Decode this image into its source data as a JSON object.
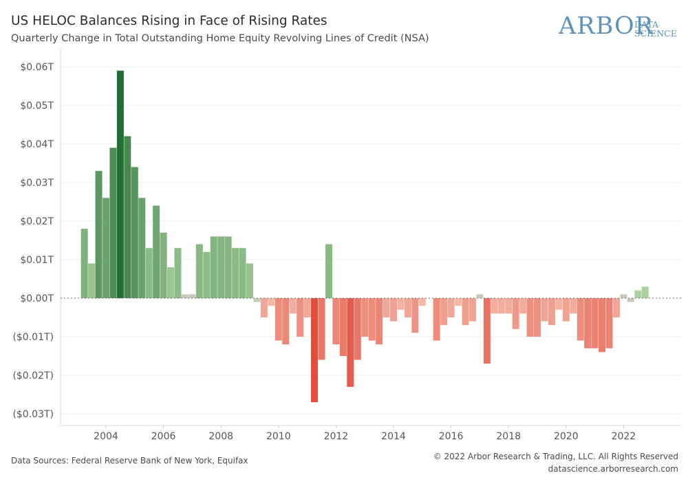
{
  "header": {
    "title": "US HELOC Balances Rising in Face of Rising Rates",
    "subtitle": "Quarterly Change in Total Outstanding Home Equity Revolving Lines of Credit (NSA)"
  },
  "logo": {
    "word": "ARBOR",
    "line1": "DATA",
    "line2": "SCIENCE",
    "color": "#5f93b8"
  },
  "footer": {
    "sources": "Data Sources: Federal Reserve Bank of New York, Equifax",
    "copyright": "© 2022 Arbor Research & Trading, LLC. All Rights Reserved",
    "website": "datascience.arborresearch.com"
  },
  "chart_data": {
    "type": "bar",
    "title": "US HELOC Balances Rising in Face of Rising Rates",
    "subtitle": "Quarterly Change in Total Outstanding Home Equity Revolving Lines of Credit (NSA)",
    "xlabel": "",
    "ylabel": "",
    "ylim": [
      -0.03,
      0.06
    ],
    "xlim": [
      2002.0,
      2024.0
    ],
    "yticks": [
      0.06,
      0.05,
      0.04,
      0.03,
      0.02,
      0.01,
      0.0,
      -0.01,
      -0.02,
      -0.03
    ],
    "ytick_labels": [
      "$0.06T",
      "$0.05T",
      "$0.04T",
      "$0.03T",
      "$0.02T",
      "$0.01T",
      "$0.00T",
      "($0.01T)",
      "($0.02T)",
      "($0.03T)"
    ],
    "xticks": [
      2004,
      2006,
      2008,
      2010,
      2012,
      2014,
      2016,
      2018,
      2020,
      2022
    ],
    "xtick_labels": [
      "2004",
      "2006",
      "2008",
      "2010",
      "2012",
      "2014",
      "2016",
      "2018",
      "2020",
      "2022"
    ],
    "grid": true,
    "zero_line": "dotted",
    "start": 2003.25,
    "step": 0.25,
    "colors": {
      "positive_light": "#b9dba9",
      "positive_dark": "#236e35",
      "negative_light": "#f6c7b9",
      "negative_dark": "#e34d3b",
      "neutral": "#c9c9b9"
    },
    "values": [
      0.018,
      0.009,
      0.033,
      0.026,
      0.039,
      0.059,
      0.042,
      0.034,
      0.026,
      0.013,
      0.024,
      0.017,
      0.008,
      0.013,
      0.001,
      0.001,
      0.014,
      0.012,
      0.016,
      0.016,
      0.016,
      0.013,
      0.013,
      0.009,
      -0.001,
      -0.005,
      -0.002,
      -0.011,
      -0.012,
      -0.004,
      -0.01,
      -0.005,
      -0.027,
      -0.016,
      0.014,
      -0.012,
      -0.015,
      -0.023,
      -0.016,
      -0.01,
      -0.011,
      -0.012,
      -0.005,
      -0.006,
      -0.003,
      -0.005,
      -0.009,
      -0.002,
      0.0,
      -0.011,
      -0.007,
      -0.005,
      -0.002,
      -0.007,
      -0.006,
      0.001,
      -0.017,
      -0.004,
      -0.004,
      -0.004,
      -0.008,
      -0.004,
      -0.01,
      -0.01,
      -0.006,
      -0.007,
      -0.003,
      -0.006,
      -0.004,
      -0.011,
      -0.013,
      -0.013,
      -0.014,
      -0.013,
      -0.005,
      0.001,
      -0.001,
      0.002,
      0.003
    ]
  }
}
